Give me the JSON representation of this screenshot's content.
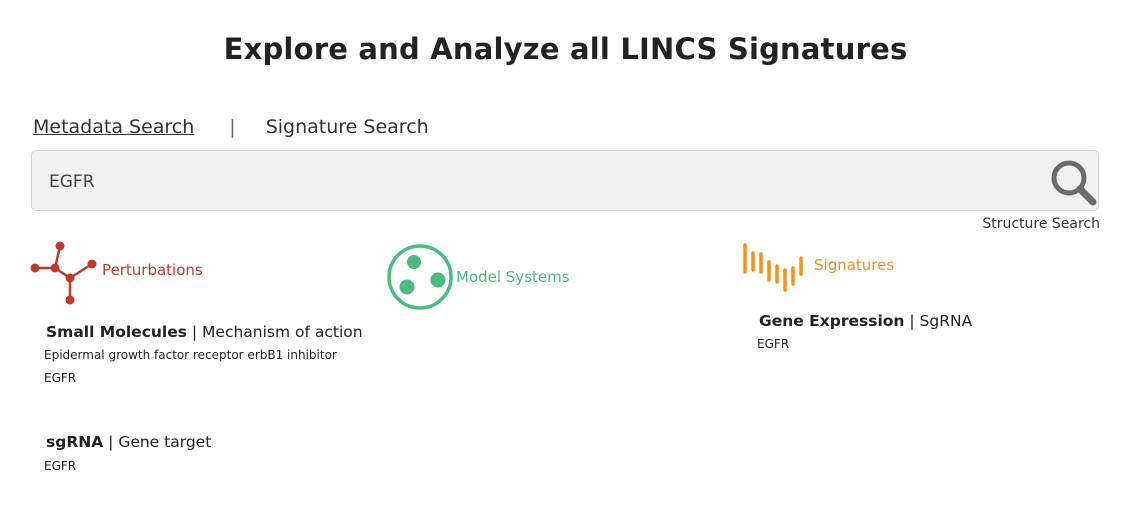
{
  "page": {
    "title": "Explore and Analyze all LINCS Signatures"
  },
  "tabs": {
    "metadata": "Metadata Search",
    "separator": "|",
    "signature": "Signature Search"
  },
  "search": {
    "value": "EGFR",
    "placeholder": "",
    "structure_link": "Structure Search"
  },
  "categories": {
    "perturbations": {
      "label": "Perturbations",
      "color": "#c0392b",
      "icon": "molecule-icon"
    },
    "model_systems": {
      "label": "Model Systems",
      "color": "#4cbb7f",
      "icon": "cells-icon"
    },
    "signatures": {
      "label": "Signatures",
      "color": "#f0921c",
      "icon": "signature-bars-icon"
    }
  },
  "results": {
    "small_molecules": {
      "name": "Small Molecules",
      "sep": " | ",
      "field": "Mechanism of action",
      "value": "Epidermal growth factor receptor erbB1 inhibitor",
      "match": "EGFR"
    },
    "sgrna": {
      "name": "sgRNA",
      "sep": " | ",
      "field": "Gene target",
      "match": "EGFR"
    },
    "gene_expression": {
      "name": "Gene Expression",
      "sep": " | ",
      "field": "SgRNA",
      "match": "EGFR"
    }
  }
}
